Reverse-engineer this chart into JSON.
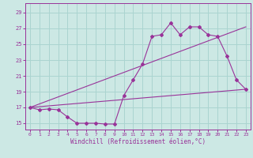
{
  "xlabel": "Windchill (Refroidissement éolien,°C)",
  "background_color": "#cce8e4",
  "grid_color": "#aad4d0",
  "line_color": "#993399",
  "x_ticks": [
    0,
    1,
    2,
    3,
    4,
    5,
    6,
    7,
    8,
    9,
    10,
    11,
    12,
    13,
    14,
    15,
    16,
    17,
    18,
    19,
    20,
    21,
    22,
    23
  ],
  "y_ticks": [
    15,
    17,
    19,
    21,
    23,
    25,
    27,
    29
  ],
  "ylim": [
    14.2,
    30.2
  ],
  "xlim": [
    -0.5,
    23.5
  ],
  "curve1_x": [
    0,
    1,
    2,
    3,
    4,
    5,
    6,
    7,
    8,
    9,
    10,
    11,
    12,
    13,
    14,
    15,
    16,
    17,
    18,
    19,
    20,
    21,
    22,
    23
  ],
  "curve1_y": [
    17.0,
    16.7,
    16.8,
    16.7,
    15.8,
    15.0,
    15.0,
    15.0,
    14.9,
    14.9,
    18.5,
    20.5,
    22.5,
    26.0,
    26.2,
    27.7,
    26.2,
    27.2,
    27.2,
    26.2,
    26.0,
    23.5,
    20.5,
    19.3
  ],
  "line2_x": [
    0,
    23
  ],
  "line2_y": [
    17.0,
    27.2
  ],
  "line3_x": [
    0,
    23
  ],
  "line3_y": [
    17.0,
    19.3
  ]
}
